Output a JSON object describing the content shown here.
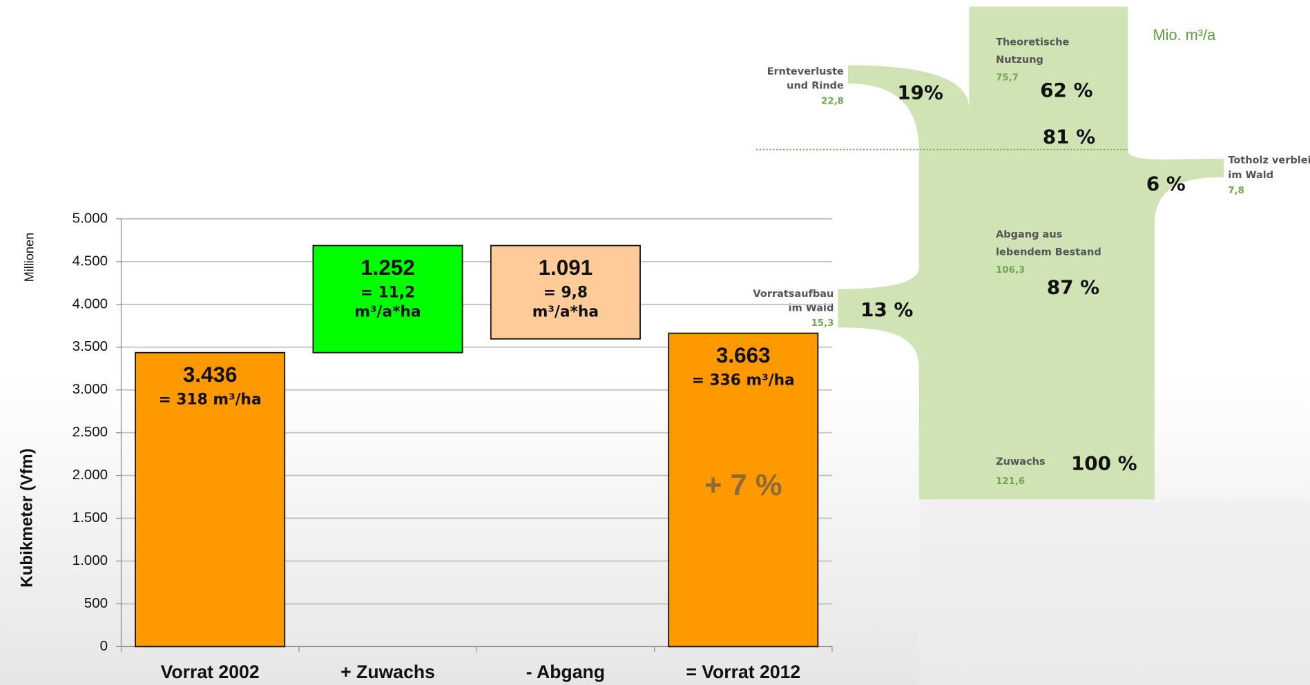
{
  "chart_data": {
    "type": "waterfall",
    "ylabel": "Kubikmeter (Vfm)",
    "unit_label": "Millionen",
    "categories": [
      "Vorrat 2002",
      "+ Zuwachs",
      "- Abgang",
      "= Vorrat 2012"
    ],
    "values": [
      3436,
      1252,
      1091,
      3663
    ],
    "value_labels": [
      "3.436",
      "1.252",
      "1.091",
      "3.663"
    ],
    "measures": [
      "total",
      "increase",
      "decrease",
      "total"
    ],
    "colors": [
      "#ff9900",
      "#00ff00",
      "#ffcc99",
      "#ff9900"
    ],
    "sublabels": [
      [
        "= 318 m³/ha"
      ],
      [
        "= 11,2",
        "m³/a*ha"
      ],
      [
        "= 9,8",
        "m³/a*ha"
      ],
      [
        "= 336 m³/ha"
      ]
    ],
    "annotation": "+ 7 %",
    "ylim": [
      0,
      5000
    ],
    "yticks": [
      0,
      500,
      {
        "value": 1000,
        "label": "1.000"
      },
      {
        "value": 1500,
        "label": "1.500"
      },
      {
        "value": 2000,
        "label": "2.000"
      },
      {
        "value": 2500,
        "label": "2.500"
      },
      {
        "value": 3000,
        "label": "3.000"
      },
      {
        "value": 3500,
        "label": "3.500"
      },
      {
        "value": 4000,
        "label": "4.000"
      },
      {
        "value": 4500,
        "label": "4.500"
      },
      {
        "value": 5000,
        "label": "5.000"
      }
    ],
    "grid": true
  },
  "sankey": {
    "unit": "Mio. m³/a",
    "total_share": "81 %",
    "nodes": [
      {
        "lines": [
          "Theoretische",
          "Nutzung"
        ],
        "value": "75,7",
        "share": "62 %"
      },
      {
        "lines": [
          "Ernteverluste",
          "und Rinde"
        ],
        "value": "22,8",
        "share": "19%"
      },
      {
        "lines": [
          "Totholz verbleibt",
          "im Wald"
        ],
        "value": "7,8",
        "share": "6 %"
      },
      {
        "lines": [
          "Abgang aus",
          "lebendem Bestand"
        ],
        "value": "106,3",
        "share": "87 %"
      },
      {
        "lines": [
          "Vorratsaufbau",
          "im Wald"
        ],
        "value": "15,3",
        "share": "13 %"
      },
      {
        "lines": [
          "Zuwachs"
        ],
        "value": "121,6",
        "share": "100 %"
      }
    ]
  }
}
